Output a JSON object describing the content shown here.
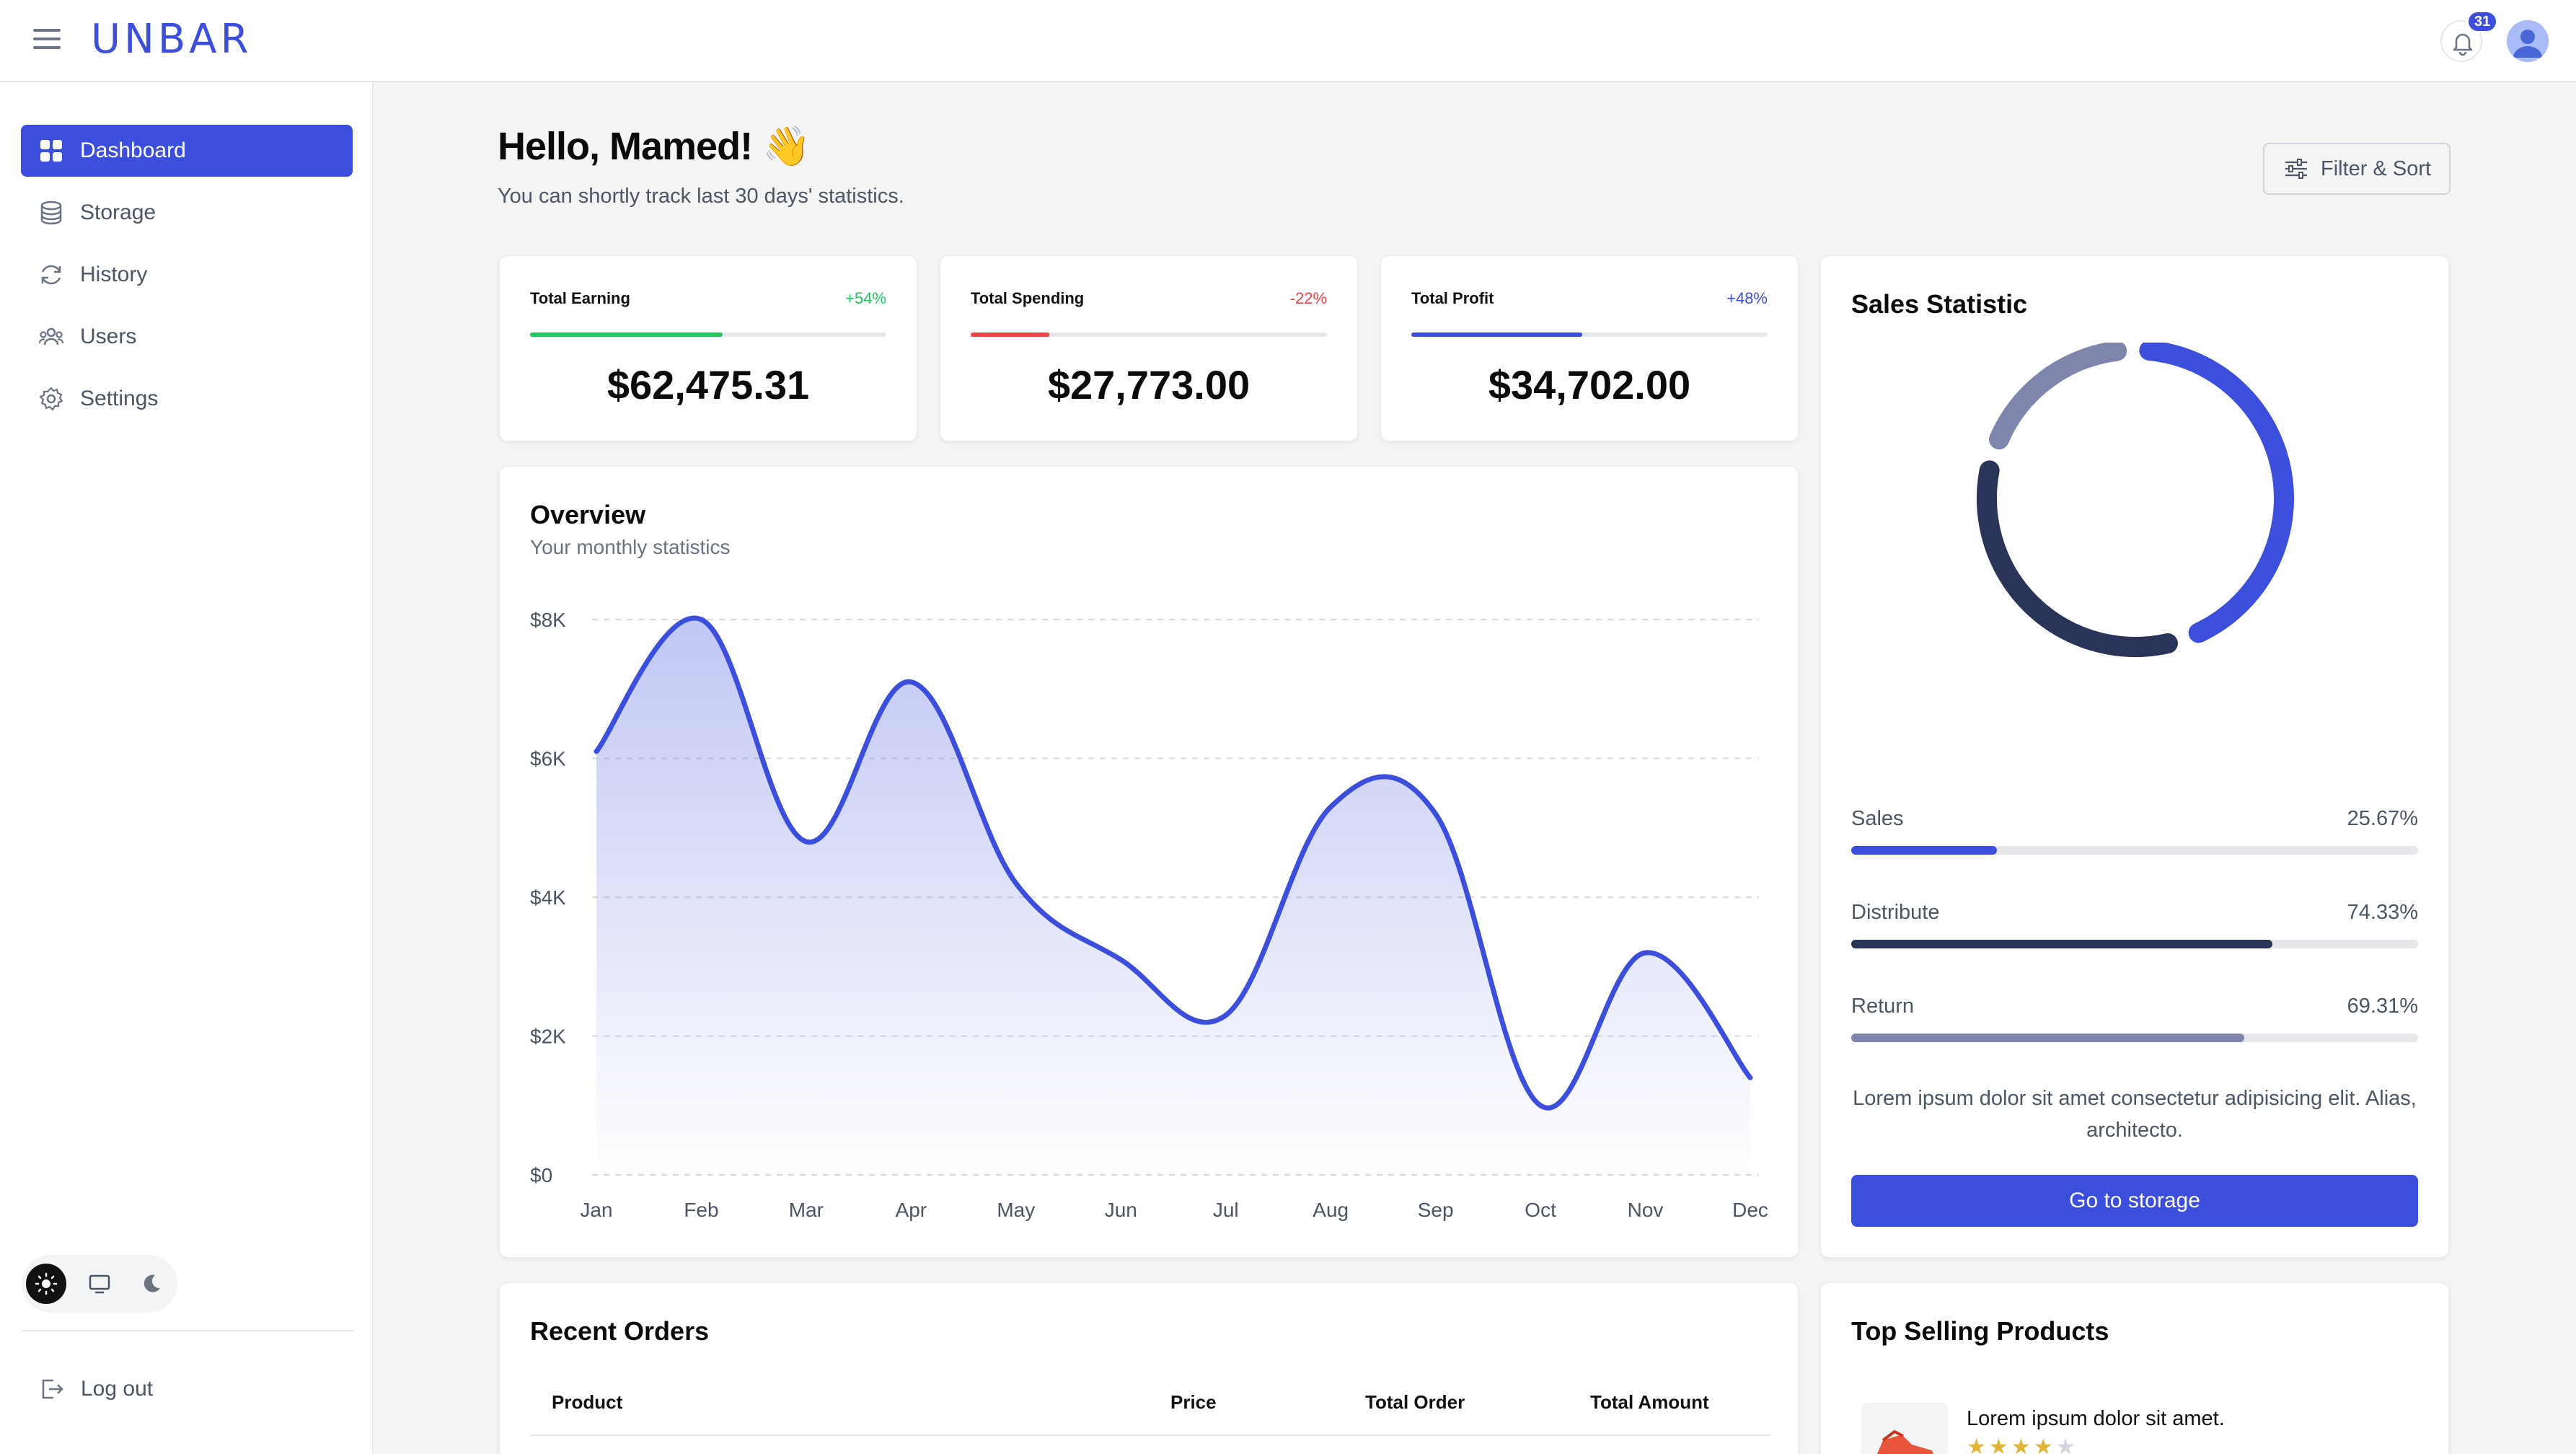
{
  "app": {
    "logo": "UNBAR",
    "notification_count": "31"
  },
  "sidebar": {
    "items": [
      {
        "label": "Dashboard",
        "icon": "grid-icon",
        "active": true
      },
      {
        "label": "Storage",
        "icon": "database-icon",
        "active": false
      },
      {
        "label": "History",
        "icon": "refresh-icon",
        "active": false
      },
      {
        "label": "Users",
        "icon": "users-icon",
        "active": false
      },
      {
        "label": "Settings",
        "icon": "gear-icon",
        "active": false
      }
    ],
    "theme_options": [
      "sun-icon",
      "monitor-icon",
      "moon-icon"
    ],
    "selected_theme": "light",
    "logout_label": "Log out"
  },
  "header": {
    "greeting": "Hello, Mamed! 👋",
    "subtitle": "You can shortly track last 30 days' statistics.",
    "filter_label": "Filter & Sort"
  },
  "stats": [
    {
      "title": "Total Earning",
      "change": "+54%",
      "value": "$62,475.31",
      "progress": 0.54,
      "color": "#22c55e"
    },
    {
      "title": "Total Spending",
      "change": "-22%",
      "value": "$27,773.00",
      "progress": 0.22,
      "color": "#ef4444"
    },
    {
      "title": "Total Profit",
      "change": "+48%",
      "value": "$34,702.00",
      "progress": 0.48,
      "color": "#3b4fdc"
    }
  ],
  "overview": {
    "title": "Overview",
    "subtitle": "Your monthly statistics"
  },
  "chart_data": {
    "type": "area",
    "categories": [
      "Jan",
      "Feb",
      "Mar",
      "Apr",
      "May",
      "Jun",
      "Jul",
      "Aug",
      "Sep",
      "Oct",
      "Nov",
      "Dec"
    ],
    "values": [
      6100,
      8000,
      4800,
      7100,
      4200,
      3100,
      2300,
      5300,
      5200,
      1000,
      3200,
      1400
    ],
    "y_ticks": [
      "$0",
      "$2K",
      "$4K",
      "$6K",
      "$8K"
    ],
    "ylim": [
      0,
      8000
    ],
    "grid": true,
    "color": "#3b4fdc"
  },
  "sales_statistic": {
    "title": "Sales Statistic",
    "items": [
      {
        "label": "Sales",
        "value": "25.67%",
        "fraction": 0.2567,
        "color": "#3b4fdc"
      },
      {
        "label": "Distribute",
        "value": "74.33%",
        "fraction": 0.7433,
        "color": "#2a3358"
      },
      {
        "label": "Return",
        "value": "69.31%",
        "fraction": 0.6931,
        "color": "#8085ad"
      }
    ],
    "donut_segments": [
      {
        "fraction": 0.43,
        "color": "#3b4fdc"
      },
      {
        "fraction": 0.33,
        "color": "#2a3358"
      },
      {
        "fraction": 0.18,
        "color": "#8085ad"
      }
    ],
    "description": "Lorem ipsum dolor sit amet consectetur adipisicing elit. Alias, architecto.",
    "button_label": "Go to storage"
  },
  "recent_orders": {
    "title": "Recent Orders",
    "columns": [
      "Product",
      "Price",
      "Total Order",
      "Total Amount"
    ]
  },
  "top_selling": {
    "title": "Top Selling Products",
    "products": [
      {
        "name": "Lorem ipsum dolor sit amet.",
        "rating": 4,
        "max_rating": 5
      }
    ]
  }
}
